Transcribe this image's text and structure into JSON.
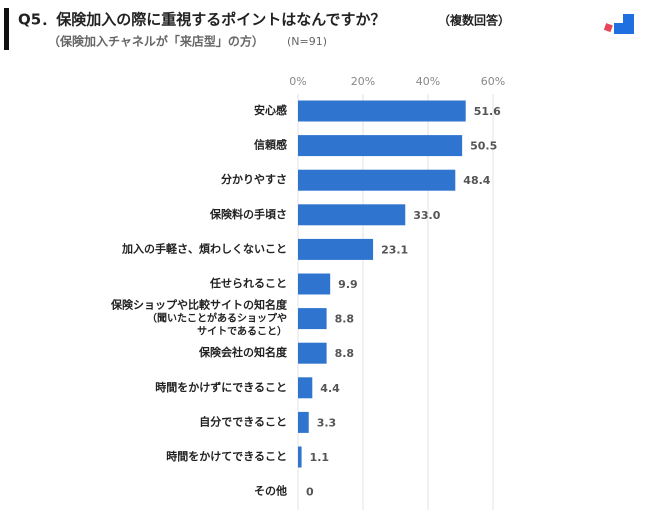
{
  "chart_data": {
    "type": "bar",
    "orientation": "horizontal",
    "title": "Q5．保険加入の際に重視するポイントはなんですか？",
    "title_note": "（複数回答）",
    "subtitle": "（保険加入チャネルが「来店型」の方）",
    "sample_size": "(N=91)",
    "categories": [
      "安心感",
      "信頼感",
      "分かりやすさ",
      "保険料の手頃さ",
      "加入の手軽さ、煩わしくないこと",
      "任せられること",
      "保険ショップや比較サイトの知名度\n（聞いたことがあるショップや\nサイトであること）",
      "保険会社の知名度",
      "時間をかけずにできること",
      "自分でできること",
      "時間をかけてできること",
      "その他"
    ],
    "values": [
      51.6,
      50.5,
      48.4,
      33.0,
      23.1,
      9.9,
      8.8,
      8.8,
      4.4,
      3.3,
      1.1,
      0
    ],
    "value_labels": [
      "51.6",
      "50.5",
      "48.4",
      "33.0",
      "23.1",
      "9.9",
      "8.8",
      "8.8",
      "4.4",
      "3.3",
      "1.1",
      "0"
    ],
    "color": "#2f74cf",
    "xlim": [
      0,
      60
    ],
    "xticks": [
      {
        "value": 0,
        "label": "0%"
      },
      {
        "value": 20,
        "label": "20%"
      },
      {
        "value": 40,
        "label": "40%"
      },
      {
        "value": 60,
        "label": "60%"
      }
    ],
    "grid": true
  }
}
